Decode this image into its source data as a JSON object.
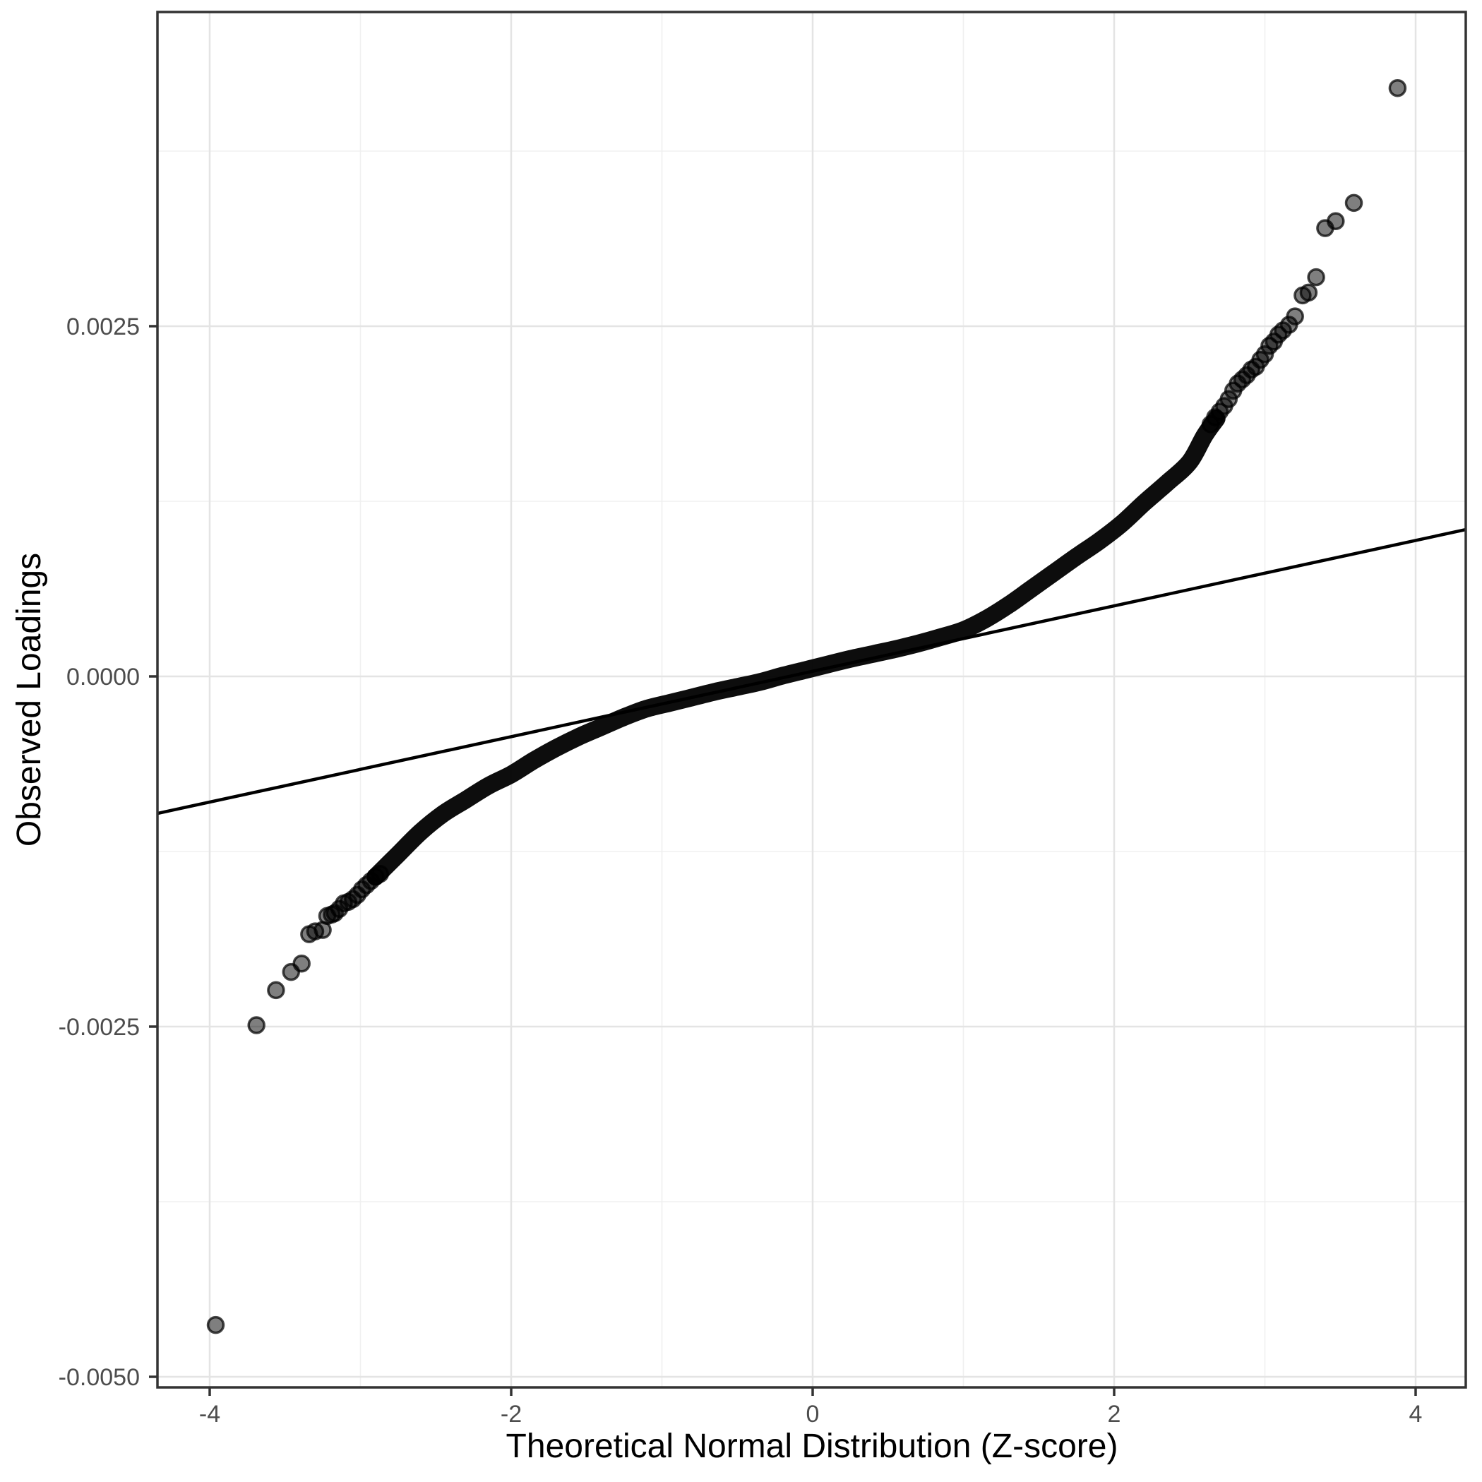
{
  "page": {
    "background": "#ffffff"
  },
  "chart_data": {
    "type": "scatter",
    "subtype": "qq-plot",
    "title": "",
    "xlabel": "Theoretical Normal Distribution (Z-score)",
    "ylabel": "Observed Loadings",
    "x_ticks": [
      -4,
      -2,
      0,
      2,
      4
    ],
    "x_tick_labels": [
      "-4",
      "-2",
      "0",
      "2",
      "4"
    ],
    "x_minor_ticks": [
      -3,
      -1,
      1,
      3
    ],
    "y_ticks": [
      0.0025,
      0.0,
      -0.0025,
      -0.005
    ],
    "y_tick_labels": [
      "0.0025",
      "0.0000",
      "-0.0025",
      "-0.0050"
    ],
    "y_minor_ticks": [
      0.00375,
      0.00125,
      -0.00125,
      -0.00375
    ],
    "xlim": [
      -4.346,
      4.332
    ],
    "ylim": [
      -0.005076,
      0.004743
    ],
    "grid": "major+minor",
    "legend": "none",
    "approx_n_points": 10000,
    "reference_line": {
      "x1": -4.346,
      "y1": -0.000978,
      "x2": 4.332,
      "y2": 0.001048
    },
    "dense_band": {
      "description": "central quantiles: thousands of overplotted black points forming a solid band",
      "z_min": -2.9,
      "z_max": 2.68,
      "curve": [
        [
          -2.9,
          -0.00143
        ],
        [
          -2.75,
          -0.00127
        ],
        [
          -2.6,
          -0.00111
        ],
        [
          -2.45,
          -0.00098
        ],
        [
          -2.3,
          -0.00088
        ],
        [
          -2.15,
          -0.00078
        ],
        [
          -2.0,
          -0.0007
        ],
        [
          -1.85,
          -0.0006
        ],
        [
          -1.7,
          -0.00051
        ],
        [
          -1.55,
          -0.00043
        ],
        [
          -1.4,
          -0.00036
        ],
        [
          -1.25,
          -0.00029
        ],
        [
          -1.1,
          -0.00023
        ],
        [
          -0.95,
          -0.00019
        ],
        [
          -0.8,
          -0.00015
        ],
        [
          -0.65,
          -0.00011
        ],
        [
          -0.5,
          -7.5e-05
        ],
        [
          -0.35,
          -4e-05
        ],
        [
          -0.2,
          5e-06
        ],
        [
          -0.05,
          4.5e-05
        ],
        [
          0.1,
          8.5e-05
        ],
        [
          0.25,
          0.000125
        ],
        [
          0.4,
          0.00016
        ],
        [
          0.55,
          0.000195
        ],
        [
          0.7,
          0.000235
        ],
        [
          0.85,
          0.00028
        ],
        [
          1.0,
          0.00033
        ],
        [
          1.15,
          0.00041
        ],
        [
          1.3,
          0.00051
        ],
        [
          1.45,
          0.000625
        ],
        [
          1.6,
          0.00074
        ],
        [
          1.75,
          0.000855
        ],
        [
          1.9,
          0.000965
        ],
        [
          2.05,
          0.00109
        ],
        [
          2.2,
          0.00124
        ],
        [
          2.35,
          0.00138
        ],
        [
          2.5,
          0.00153
        ],
        [
          2.6,
          0.00172
        ],
        [
          2.68,
          0.00184
        ]
      ]
    },
    "left_tail_points": [
      [
        -3.96,
        -0.00463
      ],
      [
        -3.69,
        -0.00249
      ],
      [
        -3.56,
        -0.00224
      ],
      [
        -3.46,
        -0.00211
      ],
      [
        -3.39,
        -0.00205
      ],
      [
        -3.34,
        -0.00184
      ],
      [
        -3.3,
        -0.00182
      ],
      [
        -3.25,
        -0.00181
      ],
      [
        -3.22,
        -0.00171
      ],
      [
        -3.19,
        -0.0017
      ],
      [
        -3.17,
        -0.00169
      ],
      [
        -3.14,
        -0.00166
      ],
      [
        -3.11,
        -0.00162
      ],
      [
        -3.08,
        -0.00161
      ],
      [
        -3.05,
        -0.00159
      ],
      [
        -3.02,
        -0.00156
      ],
      [
        -2.99,
        -0.00152
      ],
      [
        -2.96,
        -0.00149
      ],
      [
        -2.93,
        -0.00146
      ],
      [
        -2.9,
        -0.00143
      ],
      [
        -2.87,
        -0.00141
      ]
    ],
    "right_tail_points": [
      [
        2.64,
        0.0018
      ],
      [
        2.67,
        0.00185
      ],
      [
        2.7,
        0.00189
      ],
      [
        2.73,
        0.00193
      ],
      [
        2.76,
        0.00198
      ],
      [
        2.79,
        0.00204
      ],
      [
        2.82,
        0.00209
      ],
      [
        2.85,
        0.00212
      ],
      [
        2.88,
        0.00215
      ],
      [
        2.91,
        0.00219
      ],
      [
        2.94,
        0.00221
      ],
      [
        2.97,
        0.00226
      ],
      [
        3.0,
        0.0023
      ],
      [
        3.03,
        0.00236
      ],
      [
        3.06,
        0.00239
      ],
      [
        3.09,
        0.00244
      ],
      [
        3.12,
        0.00247
      ],
      [
        3.16,
        0.00251
      ],
      [
        3.2,
        0.00257
      ],
      [
        3.25,
        0.00272
      ],
      [
        3.29,
        0.00274
      ],
      [
        3.34,
        0.00285
      ],
      [
        3.4,
        0.0032
      ],
      [
        3.47,
        0.00325
      ],
      [
        3.59,
        0.00338
      ],
      [
        3.88,
        0.0042
      ]
    ],
    "style": {
      "background": "#ffffff",
      "panel_background": "#ffffff",
      "panel_border_color": "#333333",
      "grid_major_color": "#e4e4e4",
      "grid_minor_color": "#f0f0f0",
      "tick_color": "#333333",
      "tick_label_color": "#4d4d4d",
      "axis_title_color": "#000000",
      "point_fill": "#7f7f7f",
      "point_stroke": "#474747",
      "band_color": "#000000",
      "reference_line_color": "#000000"
    }
  }
}
